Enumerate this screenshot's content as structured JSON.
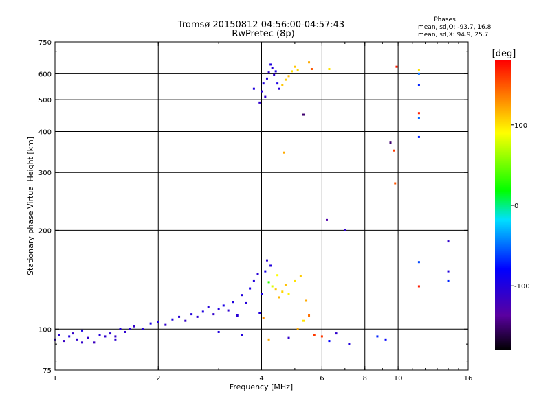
{
  "chart_data": {
    "type": "scatter",
    "title": "Tromsø 20150812 04:56:00-04:57:43",
    "subtitle": "RwPretec (8p)",
    "xlabel": "Frequency [MHz]",
    "ylabel": "Stationary phase Virtual Height [km]",
    "xscale": "log",
    "yscale": "log",
    "xlim": [
      1,
      16
    ],
    "ylim": [
      75,
      750
    ],
    "xticks": [
      1,
      2,
      4,
      6,
      8,
      10,
      16
    ],
    "xtick_labels": [
      "1",
      "2",
      "4",
      "6",
      "8",
      "10",
      "16"
    ],
    "x_gridlines": [
      2,
      4,
      6,
      8,
      10
    ],
    "yticks": [
      75,
      100,
      200,
      300,
      400,
      500,
      600,
      750
    ],
    "ytick_labels": [
      "75",
      "100",
      "200",
      "300",
      "400",
      "500",
      "600",
      "750"
    ],
    "y_gridlines": [
      100,
      200,
      300,
      400,
      500,
      600
    ],
    "grid": true,
    "colorbar": {
      "label": "[deg]",
      "range": [
        -180,
        180
      ],
      "ticks": [
        100,
        0,
        -100
      ],
      "tick_labels": [
        "100",
        "0",
        "-100"
      ],
      "colormap": "rainbow"
    },
    "phases": {
      "title": "Phases",
      "line1": "mean, sd,O:  -93.7, 16.8",
      "line2": "mean, sd,X:   94.9, 25.7"
    },
    "points": [
      [
        1.0,
        93,
        -110
      ],
      [
        1.03,
        96,
        -105
      ],
      [
        1.06,
        92,
        -115
      ],
      [
        1.1,
        95,
        -100
      ],
      [
        1.13,
        97,
        -112
      ],
      [
        1.16,
        93,
        -108
      ],
      [
        1.2,
        99,
        -95
      ],
      [
        1.25,
        94,
        -110
      ],
      [
        1.3,
        91,
        -118
      ],
      [
        1.35,
        96,
        -102
      ],
      [
        1.4,
        95,
        -110
      ],
      [
        1.45,
        97,
        -106
      ],
      [
        1.5,
        95,
        -112
      ],
      [
        1.55,
        100,
        -100
      ],
      [
        1.6,
        98,
        -108
      ],
      [
        1.65,
        100,
        -104
      ],
      [
        1.7,
        102,
        -110
      ],
      [
        1.8,
        100,
        -102
      ],
      [
        1.9,
        104,
        -96
      ],
      [
        2.0,
        105,
        -100
      ],
      [
        2.1,
        103,
        -110
      ],
      [
        2.2,
        107,
        -98
      ],
      [
        2.3,
        109,
        -104
      ],
      [
        2.4,
        106,
        -112
      ],
      [
        2.5,
        111,
        -100
      ],
      [
        2.6,
        109,
        -106
      ],
      [
        2.7,
        113,
        -98
      ],
      [
        2.8,
        117,
        -102
      ],
      [
        2.9,
        111,
        -110
      ],
      [
        3.0,
        115,
        -100
      ],
      [
        3.1,
        118,
        -95
      ],
      [
        3.2,
        114,
        -108
      ],
      [
        3.3,
        121,
        -98
      ],
      [
        3.4,
        110,
        -104
      ],
      [
        3.5,
        127,
        -100
      ],
      [
        3.6,
        120,
        -102
      ],
      [
        3.7,
        133,
        -96
      ],
      [
        3.8,
        140,
        -100
      ],
      [
        3.9,
        147,
        -104
      ],
      [
        4.0,
        128,
        -98
      ],
      [
        4.1,
        150,
        -92
      ],
      [
        4.2,
        139,
        30
      ],
      [
        4.3,
        135,
        80
      ],
      [
        4.4,
        132,
        110
      ],
      [
        4.5,
        125,
        115
      ],
      [
        4.6,
        130,
        105
      ],
      [
        4.7,
        136,
        112
      ],
      [
        4.8,
        128,
        95
      ],
      [
        5.0,
        140,
        100
      ],
      [
        5.2,
        145,
        108
      ],
      [
        5.4,
        122,
        120
      ],
      [
        5.5,
        110,
        140
      ],
      [
        5.3,
        106,
        100
      ],
      [
        4.25,
        156,
        -100
      ],
      [
        4.15,
        162,
        -106
      ],
      [
        4.05,
        108,
        130
      ],
      [
        3.95,
        112,
        -100
      ],
      [
        4.45,
        146,
        90
      ],
      [
        3.95,
        490,
        -110
      ],
      [
        4.0,
        530,
        -105
      ],
      [
        4.05,
        560,
        -100
      ],
      [
        4.1,
        510,
        -110
      ],
      [
        4.15,
        580,
        -100
      ],
      [
        4.2,
        605,
        -108
      ],
      [
        4.25,
        640,
        -98
      ],
      [
        4.3,
        625,
        -104
      ],
      [
        4.35,
        595,
        -110
      ],
      [
        4.4,
        610,
        -100
      ],
      [
        4.45,
        560,
        -96
      ],
      [
        4.5,
        540,
        -104
      ],
      [
        3.8,
        540,
        -100
      ],
      [
        4.6,
        555,
        110
      ],
      [
        4.7,
        575,
        108
      ],
      [
        4.8,
        590,
        115
      ],
      [
        4.9,
        610,
        100
      ],
      [
        5.0,
        630,
        110
      ],
      [
        5.1,
        615,
        105
      ],
      [
        5.5,
        650,
        120
      ],
      [
        5.6,
        620,
        150
      ],
      [
        4.65,
        345,
        120
      ],
      [
        5.3,
        450,
        -150
      ],
      [
        6.3,
        620,
        100
      ],
      [
        6.2,
        215,
        -130
      ],
      [
        7.0,
        200,
        -110
      ],
      [
        9.5,
        370,
        -150
      ],
      [
        9.7,
        350,
        160
      ],
      [
        9.8,
        278,
        150
      ],
      [
        9.9,
        630,
        170
      ],
      [
        11.5,
        615,
        100
      ],
      [
        11.5,
        600,
        -50
      ],
      [
        11.5,
        555,
        -70
      ],
      [
        11.5,
        455,
        170
      ],
      [
        11.5,
        440,
        -50
      ],
      [
        11.5,
        385,
        -70
      ],
      [
        11.5,
        160,
        -60
      ],
      [
        11.5,
        135,
        170
      ],
      [
        14.0,
        185,
        -110
      ],
      [
        14.0,
        150,
        -100
      ],
      [
        14.0,
        140,
        -70
      ],
      [
        5.7,
        96,
        160
      ],
      [
        6.0,
        95,
        160
      ],
      [
        6.3,
        92,
        -80
      ],
      [
        6.6,
        97,
        -110
      ],
      [
        7.2,
        90,
        -100
      ],
      [
        8.7,
        95,
        -70
      ],
      [
        9.2,
        93,
        -80
      ],
      [
        3.0,
        98,
        -100
      ],
      [
        3.5,
        96,
        -100
      ],
      [
        4.2,
        93,
        120
      ],
      [
        4.8,
        94,
        -110
      ],
      [
        5.1,
        100,
        120
      ],
      [
        1.2,
        91,
        -110
      ],
      [
        1.5,
        93,
        -108
      ]
    ]
  }
}
